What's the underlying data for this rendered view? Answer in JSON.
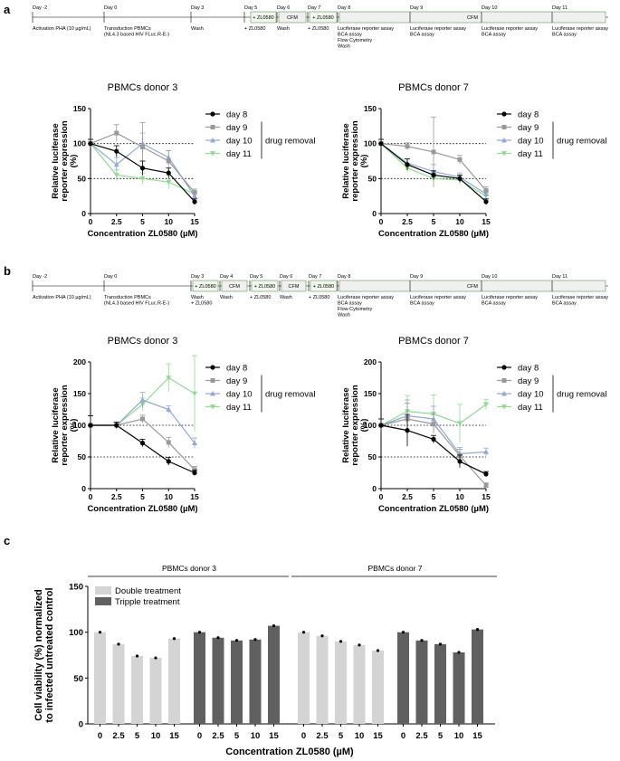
{
  "panels": {
    "a": "a",
    "b": "b",
    "c": "c"
  },
  "timeline_a": {
    "days": [
      "Day -2",
      "Day 0",
      "Day 3",
      "Day 5",
      "Day 6",
      "Day 7",
      "Day 8",
      "Day 9",
      "Day 10",
      "Day 11"
    ],
    "boxes": [
      "+ ZL0580",
      "CFM",
      "+ ZL0580",
      "CFM"
    ],
    "labels": [
      [
        "Activation PHA (10 µg/mL)"
      ],
      [
        "Transduction PBMCs",
        "(NL4.3 based HIV FLuc.R-E-)"
      ],
      [
        "Wash"
      ],
      [
        "+ ZL0580"
      ],
      [
        "Wash"
      ],
      [
        "+ ZL0580"
      ],
      [
        "Luciferase reporter assay",
        "BCA assay",
        "Flow Cytometry",
        "Wash"
      ],
      [
        "Luciferase reporter assay",
        "BCA assay"
      ],
      [
        "Luciferase reporter assay",
        "BCA assay"
      ],
      [
        "Luciferase reporter assay",
        "BCA assay"
      ]
    ]
  },
  "timeline_b": {
    "days": [
      "Day -2",
      "Day 0",
      "Day 3",
      "Day 4",
      "Day 5",
      "Day 6",
      "Day 7",
      "Day 8",
      "Day 9",
      "Day 10",
      "Day 11"
    ],
    "boxes": [
      "+ ZL0580",
      "CFM",
      "+ ZL0580",
      "CFM",
      "+ ZL0580",
      "CFM"
    ],
    "labels": [
      [
        "Activation PHA (10 µg/mL)"
      ],
      [
        "Transduction PBMCs",
        "(NL4.3 based HIV FLuc.R-E-)"
      ],
      [
        "Wash",
        "+ ZL0580"
      ],
      [
        "Wash"
      ],
      [
        "+ ZL0580"
      ],
      [
        "Wash"
      ],
      [
        "+ ZL0580"
      ],
      [
        "Luciferase reporter assay",
        "BCA assay",
        "Flow Cytometry",
        "Wash"
      ],
      [
        "Luciferase reporter assay",
        "BCA assay"
      ],
      [
        "Luciferase reporter assay",
        "BCA assay"
      ],
      [
        "Luciferase reporter assay",
        "BCA assay"
      ]
    ]
  },
  "colors": {
    "day8": "#000000",
    "day9": "#999999",
    "day10": "#8fa8d8",
    "day11": "#8fdc8f",
    "double": "#d4d4d4",
    "triple": "#606060"
  },
  "legend": {
    "drug_removal": "drug removal"
  },
  "chart_data": [
    {
      "id": "a1",
      "type": "line",
      "title": "PBMCs donor 3",
      "xlabel": "Concentration ZL0580 (µM)",
      "ylabel": [
        "Relative luciferase",
        "reporter expression",
        "(%)"
      ],
      "categories": [
        "0",
        "2.5",
        "5",
        "10",
        "15"
      ],
      "ylim": [
        0,
        150
      ],
      "yticks": [
        "0",
        "50",
        "100",
        "150"
      ],
      "series": [
        {
          "name": "day 8",
          "values": [
            100,
            89,
            65,
            58,
            17
          ],
          "errors": [
            6,
            8,
            10,
            7,
            4
          ]
        },
        {
          "name": "day 9",
          "values": [
            100,
            115,
            95,
            75,
            30
          ],
          "errors": [
            6,
            12,
            35,
            15,
            5
          ]
        },
        {
          "name": "day 10",
          "values": [
            100,
            70,
            100,
            80,
            25
          ],
          "errors": [
            6,
            10,
            15,
            10,
            5
          ]
        },
        {
          "name": "day 11",
          "values": [
            100,
            55,
            50,
            45,
            28
          ],
          "errors": [
            6,
            8,
            8,
            10,
            5
          ]
        }
      ]
    },
    {
      "id": "a2",
      "type": "line",
      "title": "PBMCs donor 7",
      "xlabel": "Concentration ZL0580 (µM)",
      "ylabel": [
        "Relative luciferase",
        "reporter expression",
        "(%)"
      ],
      "categories": [
        "0",
        "2.5",
        "5",
        "10",
        "15"
      ],
      "ylim": [
        0,
        150
      ],
      "yticks": [
        "0",
        "50",
        "100",
        "150"
      ],
      "series": [
        {
          "name": "day 8",
          "values": [
            100,
            70,
            55,
            50,
            17
          ],
          "errors": [
            6,
            8,
            6,
            5,
            4
          ]
        },
        {
          "name": "day 9",
          "values": [
            100,
            96,
            88,
            77,
            33
          ],
          "errors": [
            6,
            5,
            50,
            6,
            5
          ]
        },
        {
          "name": "day 10",
          "values": [
            100,
            72,
            60,
            52,
            28
          ],
          "errors": [
            6,
            6,
            10,
            6,
            5
          ]
        },
        {
          "name": "day 11",
          "values": [
            100,
            65,
            50,
            48,
            25
          ],
          "errors": [
            6,
            6,
            6,
            6,
            5
          ]
        }
      ]
    },
    {
      "id": "b1",
      "type": "line",
      "title": "PBMCs donor 3",
      "xlabel": "Concentration ZL0580 (µM)",
      "ylabel": [
        "Relative luciferase",
        "reporter expression",
        "(%)"
      ],
      "categories": [
        "0",
        "2.5",
        "5",
        "10",
        "15"
      ],
      "ylim": [
        0,
        200
      ],
      "yticks": [
        "0",
        "50",
        "100",
        "150",
        "200"
      ],
      "series": [
        {
          "name": "day 8",
          "values": [
            100,
            100,
            72,
            43,
            25
          ],
          "errors": [
            15,
            5,
            6,
            6,
            4
          ]
        },
        {
          "name": "day 9",
          "values": [
            100,
            100,
            110,
            73,
            30
          ],
          "errors": [
            15,
            5,
            6,
            8,
            5
          ]
        },
        {
          "name": "day 10",
          "values": [
            100,
            100,
            140,
            125,
            72
          ],
          "errors": [
            15,
            5,
            12,
            6,
            8
          ]
        },
        {
          "name": "day 11",
          "values": [
            100,
            100,
            133,
            175,
            150
          ],
          "errors": [
            15,
            5,
            10,
            22,
            60
          ]
        }
      ]
    },
    {
      "id": "b2",
      "type": "line",
      "title": "PBMCs donor 7",
      "xlabel": "Concentration ZL0580 (µM)",
      "ylabel": [
        "Relative luciferase",
        "reporter expression",
        "(%)"
      ],
      "categories": [
        "0",
        "2.5",
        "5",
        "10",
        "15"
      ],
      "ylim": [
        0,
        200
      ],
      "yticks": [
        "0",
        "50",
        "100",
        "150",
        "200"
      ],
      "series": [
        {
          "name": "day 8",
          "values": [
            100,
            92,
            78,
            43,
            23
          ],
          "errors": [
            10,
            25,
            6,
            10,
            4
          ]
        },
        {
          "name": "day 9",
          "values": [
            100,
            110,
            102,
            52,
            5
          ],
          "errors": [
            10,
            25,
            15,
            10,
            4
          ]
        },
        {
          "name": "day 10",
          "values": [
            100,
            115,
            110,
            55,
            58
          ],
          "errors": [
            10,
            25,
            20,
            10,
            6
          ]
        },
        {
          "name": "day 11",
          "values": [
            100,
            122,
            118,
            103,
            133
          ],
          "errors": [
            10,
            25,
            30,
            30,
            8
          ]
        }
      ]
    },
    {
      "id": "c",
      "type": "bar",
      "ylabel": [
        "Cell viability (%) normalized",
        "to infected untreated control"
      ],
      "xlabel": "Concentration ZL0580 (µM)",
      "groups": [
        "PBMCs donor 3",
        "PBMCs donor 7"
      ],
      "categories": [
        "0",
        "2.5",
        "5",
        "10",
        "15"
      ],
      "ylim": [
        0,
        150
      ],
      "yticks": [
        "0",
        "50",
        "100",
        "150"
      ],
      "legend": [
        "Double treatment",
        "Tripple treatment"
      ],
      "series": [
        {
          "group": "PBMCs donor 3",
          "name": "Double treatment",
          "values": [
            100,
            87,
            74,
            72,
            93
          ]
        },
        {
          "group": "PBMCs donor 3",
          "name": "Tripple treatment",
          "values": [
            100,
            94,
            91,
            92,
            107
          ]
        },
        {
          "group": "PBMCs donor 7",
          "name": "Double treatment",
          "values": [
            100,
            96,
            90,
            86,
            80
          ]
        },
        {
          "group": "PBMCs donor 7",
          "name": "Tripple treatment",
          "values": [
            100,
            91,
            87,
            78,
            103
          ]
        }
      ]
    }
  ]
}
